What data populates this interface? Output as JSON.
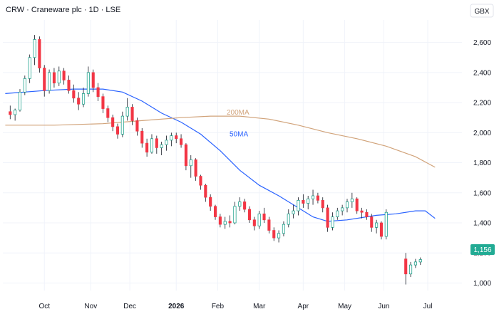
{
  "header": {
    "title": "CRW · Craneware plc · 1D · LSE",
    "currency": "GBX"
  },
  "price_badge": {
    "value": "1,156",
    "color": "#22ab94"
  },
  "colors": {
    "up": "#089981",
    "down": "#f23645",
    "wick": "#131722",
    "ma50": "#2962ff",
    "ma200": "#d1a37a",
    "grid": "#f0f3fa",
    "axis_text": "#131722"
  },
  "chart_data": {
    "type": "candlestick",
    "title": "CRW · Craneware plc · 1D · LSE",
    "ylim": [
      950,
      2750
    ],
    "y_ticks": [
      1000,
      1200,
      1400,
      1600,
      1800,
      2000,
      2200,
      2400,
      2600
    ],
    "y_tick_labels": [
      "1,000",
      "1,200",
      "1,400",
      "1,600",
      "1,800",
      "2,000",
      "2,200",
      "2,400",
      "2,600"
    ],
    "x_ticks": [
      "Oct",
      "Nov",
      "Dec",
      "2026",
      "Feb",
      "Mar",
      "Apr",
      "May",
      "Jun",
      "Jul"
    ],
    "x_tick_weeks": [
      8,
      17.5,
      25.5,
      35,
      43.5,
      52,
      61,
      69.5,
      77.5,
      86.5
    ],
    "series": [
      {
        "name": "CRW",
        "ohlc": [
          [
            2140,
            2180,
            2090,
            2120
          ],
          [
            2120,
            2160,
            2080,
            2150
          ],
          [
            2150,
            2290,
            2140,
            2270
          ],
          [
            2270,
            2380,
            2250,
            2360
          ],
          [
            2360,
            2520,
            2330,
            2500
          ],
          [
            2500,
            2650,
            2450,
            2620
          ],
          [
            2620,
            2640,
            2400,
            2430
          ],
          [
            2430,
            2450,
            2240,
            2280
          ],
          [
            2280,
            2420,
            2260,
            2400
          ],
          [
            2400,
            2430,
            2300,
            2330
          ],
          [
            2330,
            2440,
            2310,
            2410
          ],
          [
            2410,
            2430,
            2320,
            2350
          ],
          [
            2350,
            2380,
            2260,
            2280
          ],
          [
            2280,
            2320,
            2200,
            2230
          ],
          [
            2230,
            2270,
            2150,
            2190
          ],
          [
            2190,
            2300,
            2170,
            2260
          ],
          [
            2260,
            2440,
            2240,
            2400
          ],
          [
            2400,
            2420,
            2270,
            2300
          ],
          [
            2300,
            2330,
            2210,
            2240
          ],
          [
            2240,
            2260,
            2130,
            2160
          ],
          [
            2160,
            2180,
            2070,
            2100
          ],
          [
            2100,
            2120,
            2010,
            2040
          ],
          [
            2040,
            2060,
            1960,
            1990
          ],
          [
            1990,
            2140,
            1970,
            2110
          ],
          [
            2110,
            2230,
            2080,
            2170
          ],
          [
            2170,
            2190,
            2050,
            2080
          ],
          [
            2080,
            2100,
            1980,
            2010
          ],
          [
            2010,
            2030,
            1900,
            1930
          ],
          [
            1930,
            1960,
            1840,
            1870
          ],
          [
            1870,
            1990,
            1860,
            1960
          ],
          [
            1960,
            1980,
            1860,
            1900
          ],
          [
            1900,
            1940,
            1850,
            1920
          ],
          [
            1920,
            1980,
            1880,
            1950
          ],
          [
            1950,
            2000,
            1910,
            1980
          ],
          [
            1980,
            2000,
            1930,
            1960
          ],
          [
            1960,
            1990,
            1900,
            1920
          ],
          [
            1920,
            1930,
            1750,
            1780
          ],
          [
            1780,
            1850,
            1700,
            1820
          ],
          [
            1820,
            1830,
            1680,
            1710
          ],
          [
            1710,
            1720,
            1620,
            1650
          ],
          [
            1650,
            1660,
            1540,
            1570
          ],
          [
            1570,
            1590,
            1480,
            1510
          ],
          [
            1510,
            1520,
            1420,
            1440
          ],
          [
            1440,
            1460,
            1370,
            1390
          ],
          [
            1390,
            1440,
            1360,
            1410
          ],
          [
            1410,
            1450,
            1370,
            1400
          ],
          [
            1400,
            1540,
            1390,
            1510
          ],
          [
            1510,
            1570,
            1480,
            1540
          ],
          [
            1540,
            1560,
            1470,
            1490
          ],
          [
            1490,
            1510,
            1400,
            1420
          ],
          [
            1420,
            1440,
            1350,
            1380
          ],
          [
            1380,
            1480,
            1360,
            1460
          ],
          [
            1460,
            1500,
            1400,
            1420
          ],
          [
            1420,
            1440,
            1330,
            1350
          ],
          [
            1350,
            1370,
            1280,
            1300
          ],
          [
            1300,
            1350,
            1270,
            1330
          ],
          [
            1330,
            1410,
            1310,
            1390
          ],
          [
            1390,
            1490,
            1370,
            1460
          ],
          [
            1460,
            1520,
            1430,
            1480
          ],
          [
            1480,
            1570,
            1450,
            1550
          ],
          [
            1550,
            1590,
            1500,
            1530
          ],
          [
            1530,
            1580,
            1490,
            1560
          ],
          [
            1560,
            1620,
            1520,
            1580
          ],
          [
            1580,
            1600,
            1530,
            1550
          ],
          [
            1550,
            1570,
            1470,
            1500
          ],
          [
            1500,
            1520,
            1340,
            1370
          ],
          [
            1370,
            1470,
            1350,
            1440
          ],
          [
            1440,
            1500,
            1420,
            1480
          ],
          [
            1480,
            1520,
            1450,
            1500
          ],
          [
            1500,
            1560,
            1470,
            1540
          ],
          [
            1540,
            1600,
            1500,
            1560
          ],
          [
            1560,
            1570,
            1460,
            1480
          ],
          [
            1480,
            1500,
            1430,
            1470
          ],
          [
            1470,
            1490,
            1420,
            1440
          ],
          [
            1440,
            1460,
            1340,
            1370
          ],
          [
            1370,
            1420,
            1330,
            1400
          ],
          [
            1400,
            1410,
            1290,
            1310
          ],
          [
            1310,
            1490,
            1290,
            1470
          ],
          [
            1160,
            1200,
            990,
            1060
          ],
          [
            1060,
            1140,
            1040,
            1120
          ],
          [
            1120,
            1160,
            1100,
            1140
          ],
          [
            1140,
            1170,
            1120,
            1156
          ]
        ]
      },
      {
        "name": "50MA",
        "values": [
          [
            0,
            2260
          ],
          [
            8,
            2280
          ],
          [
            14,
            2290
          ],
          [
            20,
            2290
          ],
          [
            24,
            2270
          ],
          [
            28,
            2210
          ],
          [
            32,
            2130
          ],
          [
            36,
            2070
          ],
          [
            40,
            1990
          ],
          [
            44,
            1880
          ],
          [
            48,
            1750
          ],
          [
            52,
            1650
          ],
          [
            56,
            1580
          ],
          [
            60,
            1500
          ],
          [
            63,
            1440
          ],
          [
            66,
            1410
          ],
          [
            70,
            1420
          ],
          [
            76,
            1450
          ],
          [
            80,
            1460
          ],
          [
            84,
            1480
          ],
          [
            86,
            1480
          ],
          [
            88,
            1430
          ]
        ]
      },
      {
        "name": "200MA",
        "values": [
          [
            0,
            2050
          ],
          [
            10,
            2050
          ],
          [
            20,
            2060
          ],
          [
            28,
            2080
          ],
          [
            36,
            2100
          ],
          [
            42,
            2110
          ],
          [
            48,
            2110
          ],
          [
            54,
            2090
          ],
          [
            60,
            2050
          ],
          [
            66,
            2000
          ],
          [
            72,
            1960
          ],
          [
            78,
            1910
          ],
          [
            84,
            1840
          ],
          [
            88,
            1770
          ]
        ]
      }
    ]
  }
}
